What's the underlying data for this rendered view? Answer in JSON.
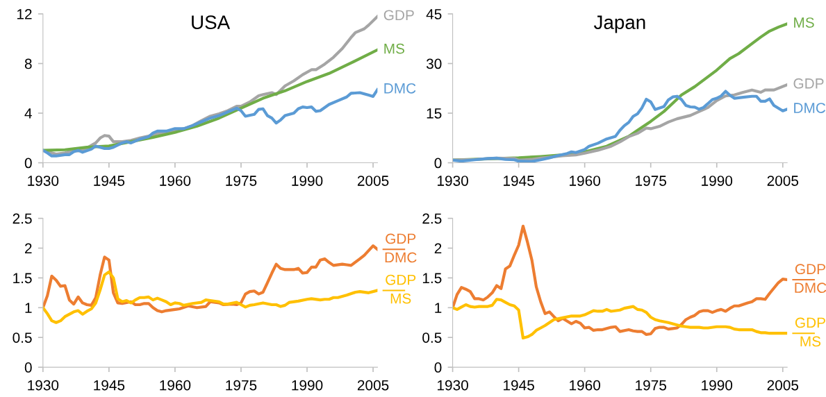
{
  "chart_data": [
    {
      "type": "line",
      "title": "USA",
      "xlim": [
        1930,
        2006
      ],
      "xticks": [
        1930,
        1945,
        1960,
        1975,
        1990,
        2005
      ],
      "ylim": [
        0,
        12
      ],
      "yticks": [
        0,
        4,
        8,
        12
      ],
      "grid": false,
      "series": [
        {
          "name": "GDP",
          "color": "#a5a5a5",
          "x": [
            1930,
            1932,
            1933,
            1935,
            1937,
            1938,
            1940,
            1942,
            1943,
            1944,
            1945,
            1946,
            1948,
            1950,
            1952,
            1954,
            1956,
            1958,
            1960,
            1962,
            1964,
            1966,
            1968,
            1970,
            1972,
            1974,
            1975,
            1977,
            1979,
            1980,
            1982,
            1983,
            1985,
            1987,
            1989,
            1991,
            1992,
            1994,
            1996,
            1998,
            2000,
            2001,
            2003,
            2004,
            2006
          ],
          "values": [
            1.0,
            0.8,
            0.7,
            0.8,
            1.0,
            0.95,
            1.2,
            1.6,
            2.0,
            2.2,
            2.15,
            1.7,
            1.7,
            1.8,
            2.0,
            2.15,
            2.35,
            2.45,
            2.6,
            2.75,
            3.0,
            3.4,
            3.75,
            3.95,
            4.2,
            4.55,
            4.55,
            4.9,
            5.4,
            5.5,
            5.65,
            5.5,
            6.2,
            6.6,
            7.1,
            7.5,
            7.5,
            7.95,
            8.5,
            9.2,
            10.1,
            10.5,
            10.8,
            11.1,
            11.8
          ]
        },
        {
          "name": "MS",
          "color": "#70ad47",
          "x": [
            1930,
            1935,
            1940,
            1945,
            1950,
            1955,
            1960,
            1965,
            1970,
            1975,
            1980,
            1985,
            1990,
            1995,
            2000,
            2006
          ],
          "values": [
            1.0,
            1.05,
            1.25,
            1.35,
            1.7,
            2.05,
            2.45,
            2.95,
            3.6,
            4.4,
            5.2,
            5.8,
            6.55,
            7.2,
            8.05,
            9.1
          ]
        },
        {
          "name": "DMC",
          "color": "#5b9bd5",
          "x": [
            1930,
            1931,
            1932,
            1933,
            1935,
            1936,
            1937,
            1938,
            1939,
            1941,
            1942,
            1944,
            1945,
            1946,
            1948,
            1949,
            1950,
            1952,
            1954,
            1955,
            1956,
            1958,
            1960,
            1962,
            1964,
            1966,
            1968,
            1970,
            1972,
            1974,
            1975,
            1976,
            1978,
            1979,
            1980,
            1981,
            1982,
            1983,
            1984,
            1985,
            1987,
            1988,
            1989,
            1990,
            1991,
            1992,
            1993,
            1995,
            1997,
            1999,
            2000,
            2002,
            2004,
            2005,
            2006
          ],
          "values": [
            1.0,
            0.8,
            0.55,
            0.55,
            0.65,
            0.65,
            0.9,
            1.0,
            0.85,
            1.1,
            1.35,
            1.15,
            1.15,
            1.25,
            1.6,
            1.7,
            1.6,
            1.9,
            2.1,
            2.4,
            2.55,
            2.55,
            2.75,
            2.75,
            3.0,
            3.3,
            3.6,
            3.8,
            4.1,
            4.4,
            4.2,
            3.75,
            3.9,
            4.3,
            4.35,
            3.8,
            3.6,
            3.2,
            3.45,
            3.8,
            4.0,
            4.35,
            4.5,
            4.45,
            4.5,
            4.15,
            4.2,
            4.7,
            5.0,
            5.3,
            5.6,
            5.65,
            5.45,
            5.35,
            5.9
          ]
        }
      ]
    },
    {
      "type": "line",
      "title": "Japan",
      "xlim": [
        1930,
        2006
      ],
      "xticks": [
        1930,
        1945,
        1960,
        1975,
        1990,
        2005
      ],
      "ylim": [
        0,
        45
      ],
      "yticks": [
        0,
        15,
        30,
        45
      ],
      "grid": false,
      "series": [
        {
          "name": "MS",
          "color": "#70ad47",
          "x": [
            1930,
            1945,
            1950,
            1955,
            1960,
            1965,
            1970,
            1972,
            1975,
            1978,
            1980,
            1982,
            1985,
            1988,
            1990,
            1993,
            1995,
            1998,
            2000,
            2002,
            2004,
            2006
          ],
          "values": [
            0.8,
            1.5,
            1.9,
            2.4,
            3.3,
            5,
            8,
            9.8,
            12.5,
            15.5,
            18,
            20.5,
            23,
            26,
            28,
            31.5,
            33,
            36,
            38,
            39.8,
            41,
            42
          ]
        },
        {
          "name": "GDP",
          "color": "#a5a5a5",
          "x": [
            1930,
            1935,
            1940,
            1944,
            1945,
            1948,
            1950,
            1955,
            1958,
            1960,
            1963,
            1966,
            1968,
            1970,
            1972,
            1974,
            1975,
            1977,
            1979,
            1981,
            1984,
            1986,
            1988,
            1990,
            1992,
            1994,
            1996,
            1998,
            2000,
            2001,
            2003,
            2006
          ],
          "values": [
            0.8,
            1.0,
            1.4,
            1.3,
            0.8,
            1,
            1.4,
            2.1,
            2.4,
            2.9,
            3.8,
            5,
            6.3,
            7.9,
            8.9,
            10.5,
            10.3,
            11,
            12.3,
            13.3,
            14.3,
            15.5,
            16.7,
            18.8,
            20.2,
            20.5,
            21.3,
            22,
            21.3,
            22,
            22,
            23.6
          ]
        },
        {
          "name": "DMC",
          "color": "#5b9bd5",
          "x": [
            1930,
            1932,
            1935,
            1938,
            1940,
            1942,
            1944,
            1945,
            1948,
            1950,
            1952,
            1954,
            1956,
            1957,
            1958,
            1960,
            1961,
            1963,
            1965,
            1967,
            1968,
            1969,
            1970,
            1971,
            1972,
            1973,
            1974,
            1975,
            1976,
            1978,
            1979,
            1980,
            1981,
            1982,
            1983,
            1984,
            1985,
            1986,
            1987,
            1989,
            1990,
            1991,
            1992,
            1993,
            1994,
            1996,
            1998,
            1999,
            2000,
            2001,
            2002,
            2003,
            2005,
            2006
          ],
          "values": [
            0.8,
            0.5,
            0.9,
            1.3,
            1.4,
            1.0,
            0.9,
            0.5,
            0.4,
            0.9,
            1.5,
            2.2,
            2.8,
            3.3,
            3.1,
            4.0,
            5.0,
            5.9,
            7.2,
            8.0,
            9.8,
            11.2,
            12.2,
            14.0,
            14.8,
            16.6,
            19.2,
            18.4,
            16.1,
            17.0,
            19.0,
            19.9,
            20.1,
            19.1,
            17.3,
            16.9,
            16.8,
            16.2,
            16.7,
            19.1,
            19.5,
            20.2,
            21.6,
            20.4,
            19.5,
            19.8,
            20.1,
            20.1,
            18.6,
            18.6,
            19.3,
            17.3,
            15.7,
            16.2
          ]
        }
      ]
    },
    {
      "type": "line",
      "xlim": [
        1930,
        2006
      ],
      "xticks": [
        1930,
        1945,
        1960,
        1975,
        1990,
        2005
      ],
      "ylim": [
        0,
        2.5
      ],
      "yticks": [
        0,
        0.5,
        1,
        1.5,
        2,
        2.5
      ],
      "grid": false,
      "series": [
        {
          "name": "GDP\nDMC",
          "color": "#ed7d31",
          "x": [
            1930,
            1931,
            1932,
            1933,
            1934,
            1935,
            1936,
            1937,
            1938,
            1939,
            1940,
            1941,
            1942,
            1943,
            1944,
            1945,
            1946,
            1947,
            1948,
            1950,
            1951,
            1952,
            1953,
            1954,
            1955,
            1956,
            1957,
            1958,
            1960,
            1961,
            1963,
            1965,
            1967,
            1968,
            1970,
            1971,
            1973,
            1974,
            1975,
            1976,
            1977,
            1978,
            1979,
            1980,
            1981,
            1982,
            1983,
            1984,
            1985,
            1987,
            1988,
            1989,
            1990,
            1991,
            1992,
            1993,
            1994,
            1995,
            1996,
            1998,
            1999,
            2000,
            2002,
            2003,
            2005,
            2006
          ],
          "values": [
            1.0,
            1.2,
            1.53,
            1.46,
            1.36,
            1.37,
            1.13,
            1.06,
            1.18,
            1.08,
            1.05,
            1.04,
            1.17,
            1.55,
            1.85,
            1.8,
            1.25,
            1.08,
            1.07,
            1.1,
            1.05,
            1.05,
            1.07,
            1.07,
            1.0,
            0.95,
            0.93,
            0.95,
            0.97,
            0.98,
            1.03,
            1.0,
            1.02,
            1.1,
            1.08,
            1.05,
            1.06,
            1.05,
            1.08,
            1.23,
            1.27,
            1.28,
            1.23,
            1.26,
            1.42,
            1.58,
            1.73,
            1.66,
            1.64,
            1.64,
            1.66,
            1.58,
            1.59,
            1.68,
            1.68,
            1.8,
            1.82,
            1.76,
            1.71,
            1.73,
            1.72,
            1.71,
            1.82,
            1.88,
            2.04,
            1.98
          ]
        },
        {
          "name": "GDP\nMS",
          "color": "#ffc000",
          "x": [
            1930,
            1931,
            1932,
            1933,
            1934,
            1935,
            1937,
            1938,
            1939,
            1940,
            1941,
            1942,
            1943,
            1944,
            1945,
            1946,
            1947,
            1948,
            1949,
            1950,
            1951,
            1952,
            1953,
            1954,
            1955,
            1956,
            1957,
            1958,
            1959,
            1960,
            1961,
            1962,
            1964,
            1966,
            1967,
            1968,
            1970,
            1971,
            1972,
            1974,
            1975,
            1976,
            1977,
            1978,
            1980,
            1982,
            1983,
            1984,
            1985,
            1986,
            1988,
            1990,
            1991,
            1993,
            1994,
            1995,
            1996,
            1997,
            1999,
            2001,
            2002,
            2004,
            2006
          ],
          "values": [
            1.0,
            0.9,
            0.78,
            0.75,
            0.78,
            0.85,
            0.93,
            0.95,
            0.89,
            0.94,
            0.98,
            1.08,
            1.3,
            1.55,
            1.6,
            1.5,
            1.15,
            1.1,
            1.12,
            1.08,
            1.13,
            1.17,
            1.17,
            1.18,
            1.13,
            1.16,
            1.13,
            1.1,
            1.05,
            1.08,
            1.07,
            1.04,
            1.07,
            1.09,
            1.13,
            1.12,
            1.1,
            1.06,
            1.06,
            1.09,
            1.05,
            1.01,
            1.04,
            1.05,
            1.08,
            1.05,
            1.05,
            1.02,
            1.04,
            1.09,
            1.11,
            1.14,
            1.15,
            1.13,
            1.14,
            1.14,
            1.17,
            1.17,
            1.21,
            1.26,
            1.27,
            1.25,
            1.29
          ]
        }
      ]
    },
    {
      "type": "line",
      "xlim": [
        1930,
        2006
      ],
      "xticks": [
        1930,
        1945,
        1960,
        1975,
        1990,
        2005
      ],
      "ylim": [
        0,
        2.5
      ],
      "yticks": [
        0,
        0.5,
        1,
        1.5,
        2,
        2.5
      ],
      "grid": false,
      "series": [
        {
          "name": "GDP\nDMC",
          "color": "#ed7d31",
          "x": [
            1930,
            1931,
            1932,
            1933,
            1934,
            1935,
            1936,
            1937,
            1938,
            1939,
            1940,
            1941,
            1942,
            1943,
            1944,
            1945,
            1946,
            1947,
            1948,
            1949,
            1950,
            1951,
            1952,
            1953,
            1954,
            1955,
            1957,
            1958,
            1959,
            1960,
            1961,
            1962,
            1963,
            1964,
            1966,
            1967,
            1968,
            1970,
            1971,
            1972,
            1973,
            1974,
            1975,
            1976,
            1977,
            1978,
            1979,
            1980,
            1981,
            1982,
            1983,
            1984,
            1985,
            1986,
            1987,
            1988,
            1989,
            1990,
            1991,
            1992,
            1993,
            1994,
            1995,
            1997,
            1998,
            1999,
            2000,
            2001,
            2002,
            2003,
            2004,
            2005,
            2006
          ],
          "values": [
            1.0,
            1.22,
            1.34,
            1.31,
            1.27,
            1.15,
            1.15,
            1.13,
            1.18,
            1.25,
            1.37,
            1.32,
            1.65,
            1.7,
            1.88,
            2.05,
            2.37,
            2.1,
            1.8,
            1.35,
            1.1,
            0.9,
            0.93,
            0.85,
            0.78,
            0.82,
            0.73,
            0.77,
            0.74,
            0.66,
            0.67,
            0.62,
            0.63,
            0.63,
            0.67,
            0.68,
            0.6,
            0.63,
            0.61,
            0.6,
            0.6,
            0.55,
            0.56,
            0.65,
            0.67,
            0.67,
            0.64,
            0.65,
            0.66,
            0.72,
            0.8,
            0.84,
            0.87,
            0.93,
            0.95,
            0.95,
            0.92,
            0.95,
            0.97,
            0.94,
            0.99,
            1.03,
            1.03,
            1.08,
            1.1,
            1.15,
            1.15,
            1.14,
            1.24,
            1.33,
            1.42,
            1.48,
            1.47
          ]
        },
        {
          "name": "GDP\nMS",
          "color": "#ffc000",
          "x": [
            1930,
            1931,
            1932,
            1933,
            1934,
            1935,
            1936,
            1938,
            1939,
            1940,
            1941,
            1942,
            1943,
            1944,
            1945,
            1946,
            1947,
            1948,
            1949,
            1950,
            1951,
            1953,
            1955,
            1957,
            1959,
            1960,
            1962,
            1963,
            1964,
            1965,
            1966,
            1968,
            1969,
            1971,
            1972,
            1973,
            1974,
            1975,
            1976,
            1977,
            1979,
            1980,
            1981,
            1982,
            1983,
            1984,
            1986,
            1987,
            1988,
            1990,
            1992,
            1993,
            1994,
            1995,
            1998,
            1999,
            2000,
            2001,
            2002,
            2004,
            2006
          ],
          "values": [
            1.0,
            0.97,
            1.01,
            1.05,
            1.02,
            1.01,
            1.02,
            1.02,
            1.04,
            1.14,
            1.13,
            1.09,
            1.05,
            1.03,
            0.96,
            0.49,
            0.51,
            0.55,
            0.62,
            0.66,
            0.7,
            0.8,
            0.83,
            0.86,
            0.86,
            0.88,
            0.95,
            0.94,
            0.94,
            0.97,
            0.94,
            0.96,
            0.99,
            1.02,
            0.97,
            0.96,
            0.92,
            0.84,
            0.8,
            0.78,
            0.75,
            0.73,
            0.71,
            0.69,
            0.68,
            0.67,
            0.67,
            0.66,
            0.66,
            0.68,
            0.68,
            0.67,
            0.64,
            0.63,
            0.63,
            0.6,
            0.58,
            0.58,
            0.57,
            0.57,
            0.57
          ]
        }
      ]
    }
  ]
}
